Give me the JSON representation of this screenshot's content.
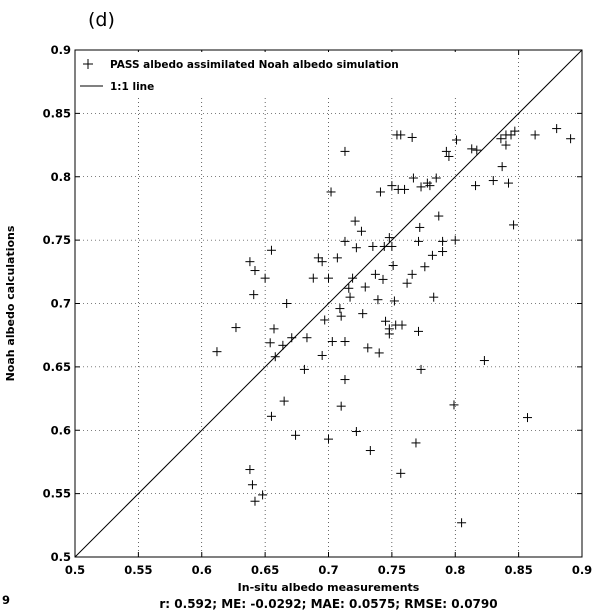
{
  "chart_data": {
    "type": "scatter",
    "panel_label": "(d)",
    "xlabel": "In-situ albedo measurements",
    "ylabel": "Noah albedo calculations",
    "xlim": [
      0.5,
      0.9
    ],
    "ylim": [
      0.5,
      0.9
    ],
    "xticks": [
      "0.5",
      "0.55",
      "0.6",
      "0.65",
      "0.7",
      "0.75",
      "0.8",
      "0.85",
      "0.9"
    ],
    "yticks": [
      "0.5",
      "0.55",
      "0.6",
      "0.65",
      "0.7",
      "0.75",
      "0.8",
      "0.85",
      "0.9"
    ],
    "stray_tick": "9",
    "grid": true,
    "legend_position": "top-left",
    "stats": "r: 0.592; ME: -0.0292; MAE: 0.0575; RMSE: 0.0790",
    "series": [
      {
        "name": "PASS albedo assimilated Noah albedo simulation",
        "marker": "plus",
        "color": "#000000",
        "points": [
          [
            0.612,
            0.662
          ],
          [
            0.627,
            0.681
          ],
          [
            0.638,
            0.733
          ],
          [
            0.641,
            0.707
          ],
          [
            0.642,
            0.726
          ],
          [
            0.65,
            0.72
          ],
          [
            0.655,
            0.742
          ],
          [
            0.654,
            0.669
          ],
          [
            0.657,
            0.68
          ],
          [
            0.658,
            0.658
          ],
          [
            0.664,
            0.667
          ],
          [
            0.667,
            0.7
          ],
          [
            0.671,
            0.673
          ],
          [
            0.655,
            0.611
          ],
          [
            0.665,
            0.623
          ],
          [
            0.674,
            0.596
          ],
          [
            0.638,
            0.569
          ],
          [
            0.64,
            0.557
          ],
          [
            0.642,
            0.544
          ],
          [
            0.648,
            0.549
          ],
          [
            0.681,
            0.648
          ],
          [
            0.683,
            0.673
          ],
          [
            0.688,
            0.72
          ],
          [
            0.692,
            0.736
          ],
          [
            0.695,
            0.733
          ],
          [
            0.695,
            0.659
          ],
          [
            0.697,
            0.687
          ],
          [
            0.7,
            0.593
          ],
          [
            0.702,
            0.788
          ],
          [
            0.703,
            0.67
          ],
          [
            0.707,
            0.736
          ],
          [
            0.709,
            0.696
          ],
          [
            0.71,
            0.69
          ],
          [
            0.71,
            0.619
          ],
          [
            0.713,
            0.67
          ],
          [
            0.713,
            0.64
          ],
          [
            0.713,
            0.82
          ],
          [
            0.713,
            0.749
          ],
          [
            0.716,
            0.712
          ],
          [
            0.717,
            0.705
          ],
          [
            0.719,
            0.72
          ],
          [
            0.721,
            0.765
          ],
          [
            0.722,
            0.744
          ],
          [
            0.722,
            0.599
          ],
          [
            0.726,
            0.757
          ],
          [
            0.727,
            0.692
          ],
          [
            0.729,
            0.713
          ],
          [
            0.731,
            0.665
          ],
          [
            0.733,
            0.584
          ],
          [
            0.735,
            0.745
          ],
          [
            0.737,
            0.723
          ],
          [
            0.739,
            0.703
          ],
          [
            0.74,
            0.661
          ],
          [
            0.741,
            0.788
          ],
          [
            0.743,
            0.719
          ],
          [
            0.744,
            0.745
          ],
          [
            0.745,
            0.686
          ],
          [
            0.748,
            0.752
          ],
          [
            0.748,
            0.68
          ],
          [
            0.748,
            0.676
          ],
          [
            0.75,
            0.745
          ],
          [
            0.75,
            0.793
          ],
          [
            0.751,
            0.73
          ],
          [
            0.752,
            0.702
          ],
          [
            0.753,
            0.683
          ],
          [
            0.754,
            0.833
          ],
          [
            0.755,
            0.79
          ],
          [
            0.757,
            0.833
          ],
          [
            0.757,
            0.566
          ],
          [
            0.758,
            0.683
          ],
          [
            0.76,
            0.79
          ],
          [
            0.762,
            0.716
          ],
          [
            0.766,
            0.831
          ],
          [
            0.766,
            0.723
          ],
          [
            0.767,
            0.799
          ],
          [
            0.769,
            0.59
          ],
          [
            0.771,
            0.749
          ],
          [
            0.771,
            0.678
          ],
          [
            0.772,
            0.76
          ],
          [
            0.773,
            0.792
          ],
          [
            0.773,
            0.648
          ],
          [
            0.776,
            0.729
          ],
          [
            0.778,
            0.795
          ],
          [
            0.78,
            0.793
          ],
          [
            0.782,
            0.738
          ],
          [
            0.783,
            0.705
          ],
          [
            0.785,
            0.799
          ],
          [
            0.787,
            0.769
          ],
          [
            0.79,
            0.749
          ],
          [
            0.793,
            0.82
          ],
          [
            0.795,
            0.816
          ],
          [
            0.799,
            0.62
          ],
          [
            0.8,
            0.75
          ],
          [
            0.801,
            0.829
          ],
          [
            0.805,
            0.527
          ],
          [
            0.813,
            0.822
          ],
          [
            0.816,
            0.793
          ],
          [
            0.817,
            0.821
          ],
          [
            0.823,
            0.655
          ],
          [
            0.83,
            0.797
          ],
          [
            0.836,
            0.83
          ],
          [
            0.837,
            0.808
          ],
          [
            0.84,
            0.833
          ],
          [
            0.84,
            0.825
          ],
          [
            0.842,
            0.795
          ],
          [
            0.844,
            0.833
          ],
          [
            0.846,
            0.762
          ],
          [
            0.847,
            0.836
          ],
          [
            0.857,
            0.61
          ],
          [
            0.863,
            0.833
          ],
          [
            0.88,
            0.838
          ],
          [
            0.891,
            0.83
          ],
          [
            0.79,
            0.741
          ],
          [
            0.7,
            0.72
          ]
        ]
      },
      {
        "name": "1:1 line",
        "style": "line",
        "color": "#000000",
        "points": [
          [
            0.5,
            0.5
          ],
          [
            0.9,
            0.9
          ]
        ]
      }
    ]
  }
}
